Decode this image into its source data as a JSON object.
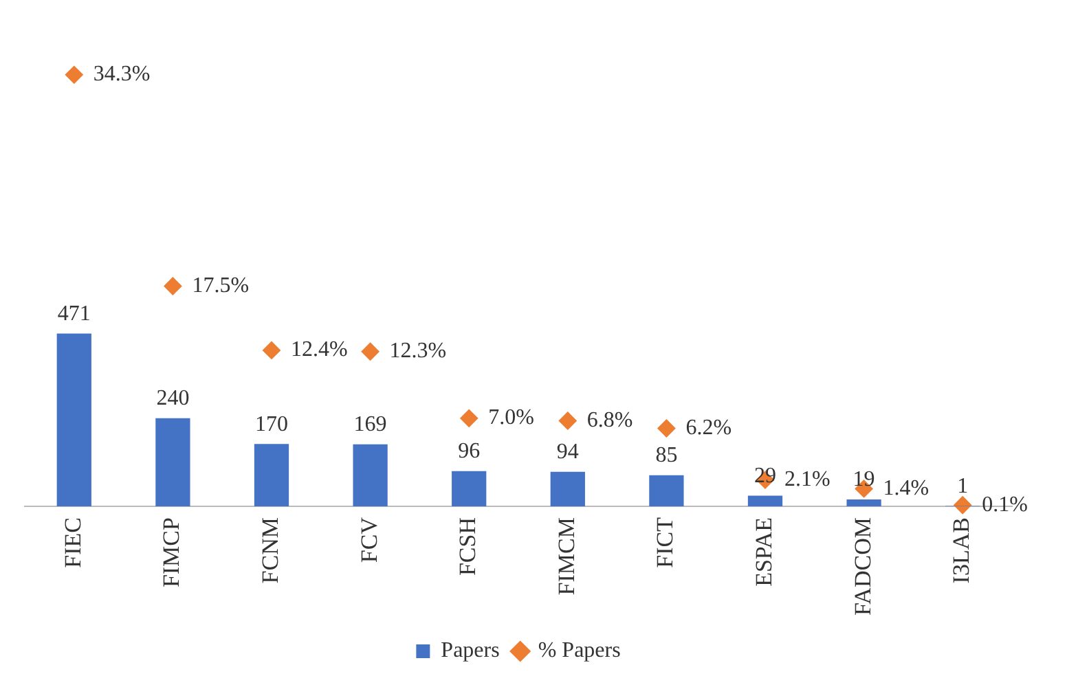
{
  "chart_data": {
    "type": "bar",
    "categories": [
      "FIEC",
      "FIMCP",
      "FCNM",
      "FCV",
      "FCSH",
      "FIMCM",
      "FICT",
      "ESPAE",
      "FADCOM",
      "I3LAB"
    ],
    "series": [
      {
        "name": "Papers",
        "axis": "y2",
        "color": "#4472c4",
        "values": [
          471,
          240,
          170,
          169,
          96,
          94,
          85,
          29,
          19,
          1
        ]
      },
      {
        "name": "% Papers",
        "type": "scatter",
        "color": "#ed7d31",
        "marker": "diamond",
        "values": [
          34.3,
          17.5,
          12.4,
          12.3,
          7.0,
          6.8,
          6.2,
          2.1,
          1.4,
          0.1
        ],
        "value_labels": [
          "34.3%",
          "17.5%",
          "12.4%",
          "12.3%",
          "7.0%",
          "6.8%",
          "6.2%",
          "2.1%",
          "1.4%",
          "0.1%"
        ]
      }
    ],
    "data_labels": true,
    "grid": false,
    "legend": "bottom"
  }
}
